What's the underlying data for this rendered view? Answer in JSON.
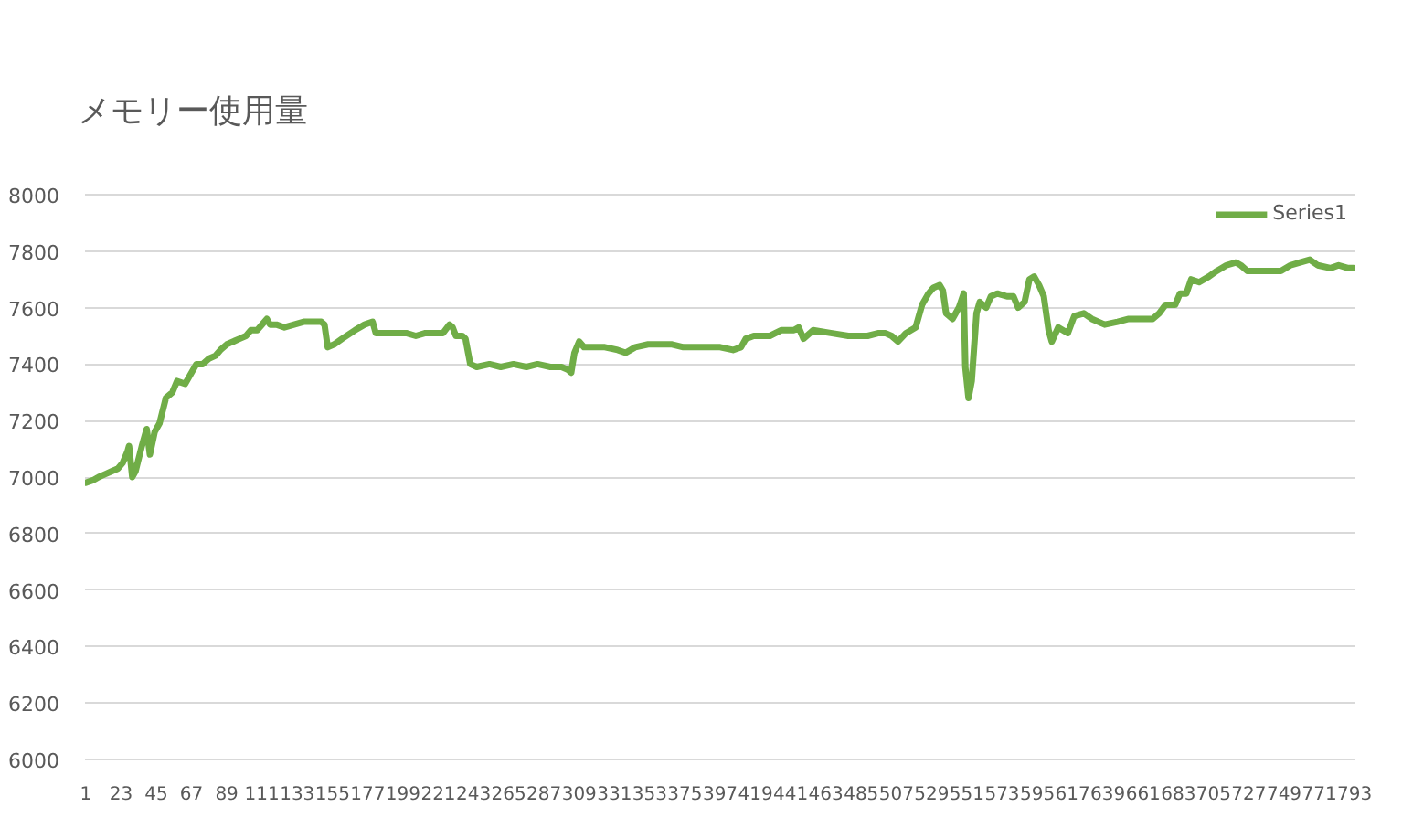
{
  "chart_data": {
    "type": "line",
    "title": "メモリー使用量",
    "x": [
      1,
      6,
      9,
      13,
      17,
      21,
      24,
      27,
      28,
      30,
      32,
      36,
      39,
      41,
      44,
      47,
      51,
      55,
      58,
      63,
      66,
      70,
      74,
      78,
      82,
      85,
      89,
      93,
      97,
      101,
      104,
      108,
      111,
      114,
      116,
      120,
      125,
      131,
      137,
      142,
      148,
      150,
      152,
      156,
      161,
      169,
      175,
      180,
      182,
      192,
      201,
      207,
      213,
      219,
      224,
      228,
      230,
      232,
      236,
      238,
      241,
      245,
      253,
      260,
      268,
      276,
      283,
      291,
      298,
      302,
      304,
      306,
      309,
      312,
      317,
      325,
      333,
      338,
      344,
      352,
      359,
      367,
      374,
      382,
      390,
      397,
      405,
      410,
      413,
      418,
      428,
      435,
      443,
      446,
      449,
      455,
      466,
      477,
      489,
      496,
      500,
      504,
      508,
      513,
      519,
      523,
      527,
      530,
      534,
      536,
      538,
      542,
      546,
      549,
      550,
      552,
      554,
      557,
      559,
      563,
      566,
      570,
      576,
      580,
      583,
      587,
      590,
      593,
      596,
      599,
      602,
      604,
      608,
      614,
      618,
      624,
      629,
      637,
      645,
      652,
      660,
      667,
      671,
      675,
      681,
      684,
      688,
      691,
      696,
      702,
      707,
      713,
      719,
      722,
      726,
      732,
      740,
      747,
      753,
      759,
      765,
      770,
      778,
      783,
      789,
      793
    ],
    "series": [
      {
        "name": "Series1",
        "color": "#70ad47",
        "values": [
          6980,
          6990,
          7000,
          7010,
          7020,
          7030,
          7050,
          7090,
          7110,
          7000,
          7020,
          7110,
          7170,
          7080,
          7160,
          7190,
          7280,
          7300,
          7340,
          7330,
          7360,
          7400,
          7400,
          7420,
          7430,
          7450,
          7470,
          7480,
          7490,
          7500,
          7520,
          7520,
          7540,
          7560,
          7540,
          7540,
          7530,
          7540,
          7550,
          7550,
          7550,
          7540,
          7460,
          7470,
          7490,
          7520,
          7540,
          7550,
          7510,
          7510,
          7510,
          7500,
          7510,
          7510,
          7510,
          7540,
          7530,
          7500,
          7500,
          7490,
          7400,
          7390,
          7400,
          7390,
          7400,
          7390,
          7400,
          7390,
          7390,
          7380,
          7370,
          7440,
          7480,
          7460,
          7460,
          7460,
          7450,
          7440,
          7460,
          7470,
          7470,
          7470,
          7460,
          7460,
          7460,
          7460,
          7450,
          7460,
          7490,
          7500,
          7500,
          7520,
          7520,
          7530,
          7490,
          7520,
          7510,
          7500,
          7500,
          7510,
          7510,
          7500,
          7480,
          7510,
          7530,
          7610,
          7650,
          7670,
          7680,
          7660,
          7580,
          7560,
          7600,
          7650,
          7390,
          7280,
          7340,
          7580,
          7620,
          7600,
          7640,
          7650,
          7640,
          7640,
          7600,
          7620,
          7700,
          7710,
          7680,
          7640,
          7520,
          7480,
          7530,
          7510,
          7570,
          7580,
          7560,
          7540,
          7550,
          7560,
          7560,
          7560,
          7580,
          7610,
          7610,
          7650,
          7650,
          7700,
          7690,
          7710,
          7730,
          7750,
          7760,
          7750,
          7730,
          7730,
          7730,
          7730,
          7750,
          7760,
          7770,
          7750,
          7740,
          7750,
          7740,
          7740
        ]
      }
    ],
    "xlim": [
      0.5,
      793.5
    ],
    "xticks": [
      1,
      23,
      45,
      67,
      89,
      111,
      133,
      155,
      177,
      199,
      221,
      243,
      265,
      287,
      309,
      331,
      353,
      375,
      397,
      419,
      441,
      463,
      485,
      507,
      529,
      551,
      573,
      595,
      617,
      639,
      661,
      683,
      705,
      727,
      749,
      771,
      793
    ],
    "ylim": [
      6000,
      8000
    ],
    "yticks": [
      6000,
      6200,
      6400,
      6600,
      6800,
      7000,
      7200,
      7400,
      7600,
      7800,
      8000
    ],
    "grid": "y",
    "legend": "top right",
    "line_style": "solid"
  }
}
